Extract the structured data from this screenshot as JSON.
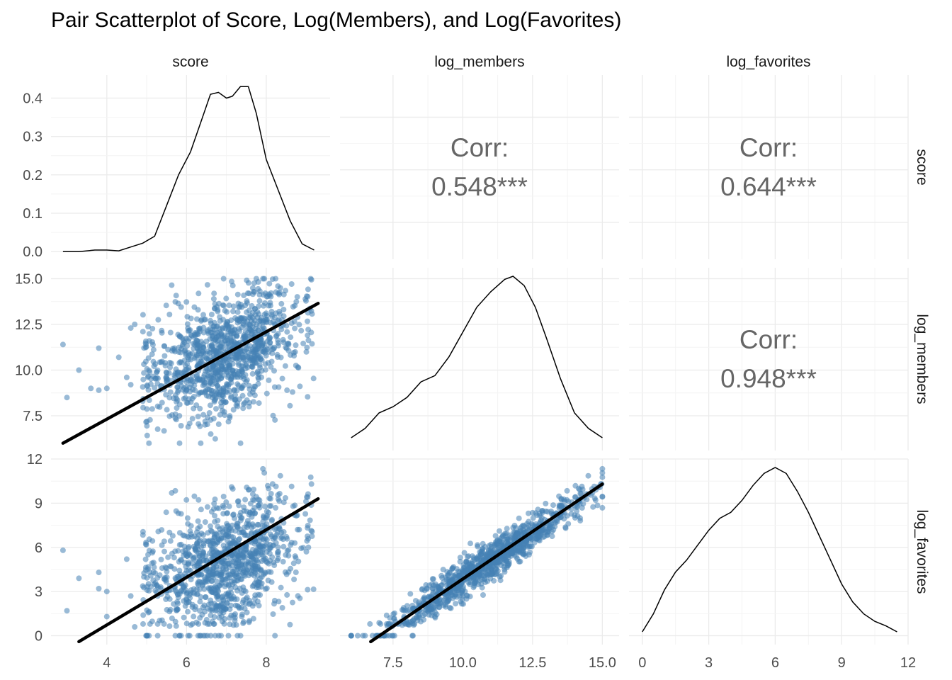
{
  "chart_data": {
    "type": "scatter",
    "title": "Pair Scatterplot of Score, Log(Members), and Log(Favorites)",
    "variables": [
      "score",
      "log_members",
      "log_favorites"
    ],
    "axes": {
      "score": {
        "lim": [
          2.6,
          9.6
        ],
        "ticks": [
          4,
          6,
          8
        ],
        "tick_labels": [
          "4",
          "6",
          "8"
        ]
      },
      "log_members": {
        "lim": [
          5.6,
          15.6
        ],
        "ticks": [
          7.5,
          10.0,
          12.5,
          15.0
        ],
        "tick_labels": [
          "7.5",
          "10.0",
          "12.5",
          "15.0"
        ]
      },
      "log_favorites": {
        "lim": [
          -0.6,
          12.0
        ],
        "ticks": [
          0,
          3,
          6,
          9,
          12
        ],
        "tick_labels": [
          "0",
          "3",
          "6",
          "9",
          "12"
        ]
      }
    },
    "density_axis": {
      "lim": [
        -0.02,
        0.46
      ],
      "ticks": [
        0.0,
        0.1,
        0.2,
        0.3,
        0.4
      ],
      "tick_labels": [
        "0.0",
        "0.1",
        "0.2",
        "0.3",
        "0.4"
      ]
    },
    "correlations": [
      {
        "x": "log_members",
        "y": "score",
        "label": "Corr:",
        "value": "0.548***"
      },
      {
        "x": "log_favorites",
        "y": "score",
        "label": "Corr:",
        "value": "0.644***"
      },
      {
        "x": "log_favorites",
        "y": "log_members",
        "label": "Corr:",
        "value": "0.948***"
      }
    ],
    "densities": {
      "score": [
        [
          2.9,
          0.0
        ],
        [
          3.3,
          0.0
        ],
        [
          3.7,
          0.004
        ],
        [
          4.0,
          0.004
        ],
        [
          4.3,
          0.002
        ],
        [
          4.6,
          0.012
        ],
        [
          4.9,
          0.022
        ],
        [
          5.2,
          0.04
        ],
        [
          5.5,
          0.12
        ],
        [
          5.8,
          0.2
        ],
        [
          6.1,
          0.26
        ],
        [
          6.4,
          0.35
        ],
        [
          6.6,
          0.41
        ],
        [
          6.8,
          0.415
        ],
        [
          7.0,
          0.4
        ],
        [
          7.15,
          0.405
        ],
        [
          7.35,
          0.43
        ],
        [
          7.55,
          0.43
        ],
        [
          7.75,
          0.36
        ],
        [
          8.0,
          0.24
        ],
        [
          8.3,
          0.16
        ],
        [
          8.6,
          0.08
        ],
        [
          8.9,
          0.02
        ],
        [
          9.2,
          0.004
        ]
      ],
      "log_members": [
        [
          6.0,
          0.0
        ],
        [
          6.5,
          0.03
        ],
        [
          7.0,
          0.08
        ],
        [
          7.5,
          0.1
        ],
        [
          8.0,
          0.13
        ],
        [
          8.5,
          0.18
        ],
        [
          9.0,
          0.2
        ],
        [
          9.5,
          0.26
        ],
        [
          10.0,
          0.34
        ],
        [
          10.5,
          0.42
        ],
        [
          11.0,
          0.47
        ],
        [
          11.5,
          0.51
        ],
        [
          11.8,
          0.52
        ],
        [
          12.2,
          0.49
        ],
        [
          12.6,
          0.42
        ],
        [
          13.0,
          0.32
        ],
        [
          13.5,
          0.19
        ],
        [
          14.0,
          0.08
        ],
        [
          14.5,
          0.03
        ],
        [
          15.0,
          0.0
        ]
      ],
      "log_favorites": [
        [
          0.0,
          0.0
        ],
        [
          0.5,
          0.06
        ],
        [
          1.0,
          0.14
        ],
        [
          1.5,
          0.2
        ],
        [
          2.0,
          0.24
        ],
        [
          2.5,
          0.29
        ],
        [
          3.0,
          0.34
        ],
        [
          3.5,
          0.38
        ],
        [
          4.0,
          0.4
        ],
        [
          4.5,
          0.44
        ],
        [
          5.0,
          0.49
        ],
        [
          5.5,
          0.53
        ],
        [
          6.0,
          0.55
        ],
        [
          6.5,
          0.53
        ],
        [
          7.0,
          0.47
        ],
        [
          7.5,
          0.4
        ],
        [
          8.0,
          0.32
        ],
        [
          8.5,
          0.24
        ],
        [
          9.0,
          0.16
        ],
        [
          9.5,
          0.1
        ],
        [
          10.0,
          0.06
        ],
        [
          10.5,
          0.035
        ],
        [
          11.0,
          0.02
        ],
        [
          11.5,
          0.0
        ]
      ]
    },
    "regressions": [
      {
        "x": "score",
        "y": "log_members",
        "points": [
          [
            2.9,
            6.0
          ],
          [
            9.3,
            13.65
          ]
        ]
      },
      {
        "x": "score",
        "y": "log_favorites",
        "points": [
          [
            3.3,
            -0.4
          ],
          [
            9.3,
            9.3
          ]
        ]
      },
      {
        "x": "log_members",
        "y": "log_favorites",
        "points": [
          [
            6.7,
            -0.4
          ],
          [
            15.0,
            10.3
          ]
        ]
      }
    ],
    "outliers": {
      "score_members": [
        [
          2.9,
          11.4
        ],
        [
          3.0,
          8.5
        ],
        [
          3.3,
          10.0
        ],
        [
          3.8,
          11.2
        ],
        [
          3.6,
          9.0
        ],
        [
          3.8,
          8.9
        ],
        [
          4.0,
          9.0
        ],
        [
          4.3,
          10.7
        ],
        [
          4.5,
          9.6
        ],
        [
          4.6,
          9.2
        ],
        [
          4.6,
          12.3
        ],
        [
          4.7,
          12.5
        ],
        [
          4.9,
          8.3
        ]
      ],
      "score_fav": [
        [
          2.9,
          5.8
        ],
        [
          3.0,
          1.7
        ],
        [
          3.3,
          3.9
        ],
        [
          3.8,
          4.3
        ],
        [
          3.8,
          3.2
        ],
        [
          4.0,
          3.0
        ],
        [
          4.0,
          1.3
        ],
        [
          4.5,
          5.2
        ],
        [
          4.6,
          2.7
        ],
        [
          4.7,
          0.6
        ]
      ]
    },
    "colors": {
      "points": "#4682b4",
      "line": "#000000",
      "density": "#000000",
      "grid": "#ebebeb",
      "corr_text": "#666666"
    }
  }
}
